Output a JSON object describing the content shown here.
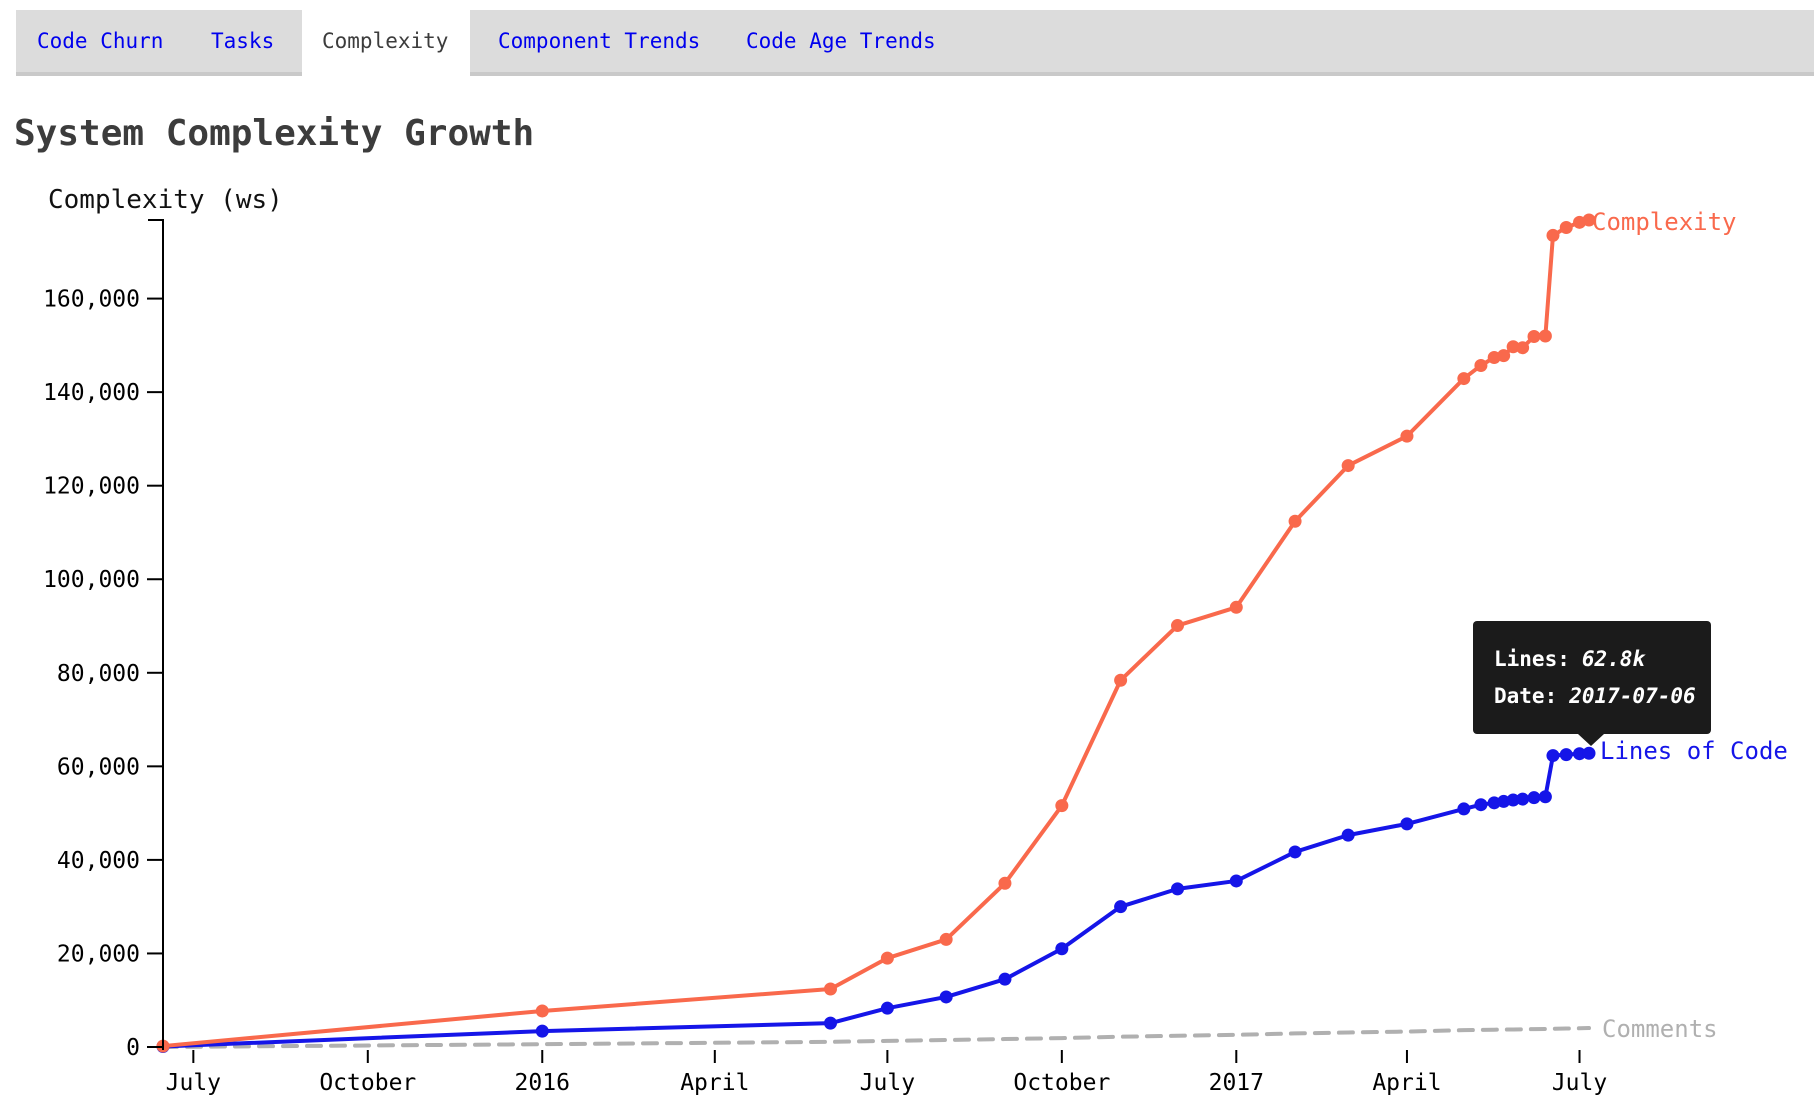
{
  "tab_bar": {
    "group1": {
      "tabs": [
        {
          "label": "Code Churn"
        },
        {
          "label": "Tasks"
        }
      ]
    },
    "active_tab": {
      "label": "Complexity"
    },
    "group2": {
      "tabs": [
        {
          "label": "Component Trends"
        },
        {
          "label": "Code Age Trends"
        }
      ]
    }
  },
  "chart_data": {
    "type": "line",
    "title": "System Complexity Growth",
    "y_axis_label": "Complexity (ws)",
    "x_dates": [
      "2015-06-15",
      "2016-01-01",
      "2016-06-01",
      "2016-07-01",
      "2016-08-01",
      "2016-09-01",
      "2016-10-01",
      "2016-11-01",
      "2016-12-01",
      "2017-01-01",
      "2017-02-01",
      "2017-03-01",
      "2017-04-01",
      "2017-05-01",
      "2017-05-10",
      "2017-05-17",
      "2017-05-22",
      "2017-05-27",
      "2017-06-01",
      "2017-06-07",
      "2017-06-13",
      "2017-06-17",
      "2017-06-24",
      "2017-07-01",
      "2017-07-06"
    ],
    "series": [
      {
        "name": "Complexity",
        "color": "#f9694c",
        "line_style": "solid",
        "markers": true,
        "values": [
          200,
          7700,
          12400,
          19000,
          23000,
          35000,
          51600,
          78400,
          90100,
          94000,
          112400,
          124300,
          130600,
          142900,
          145700,
          147400,
          147800,
          149700,
          149500,
          151900,
          152000,
          173500,
          175200,
          176300,
          176800
        ]
      },
      {
        "name": "Lines of Code",
        "color": "#1515e8",
        "line_style": "solid",
        "markers": true,
        "values": [
          100,
          3400,
          5100,
          8300,
          10700,
          14500,
          21000,
          30000,
          33800,
          35500,
          41700,
          45300,
          47700,
          50900,
          51800,
          52200,
          52500,
          52800,
          53000,
          53300,
          53500,
          62300,
          62500,
          62700,
          62800
        ]
      },
      {
        "name": "Comments",
        "color": "#b0b0b0",
        "line_style": "dashed",
        "markers": false,
        "values": [
          0,
          600,
          1100,
          1300,
          1500,
          1700,
          1900,
          2200,
          2400,
          2600,
          2900,
          3100,
          3300,
          3600,
          3650,
          3700,
          3720,
          3750,
          3780,
          3820,
          3850,
          3900,
          3950,
          4000,
          4050
        ]
      }
    ],
    "ylim": [
      0,
      176800
    ],
    "yticks": [
      {
        "value": 0,
        "label": "0"
      },
      {
        "value": 20000,
        "label": "20,000"
      },
      {
        "value": 40000,
        "label": "40,000"
      },
      {
        "value": 60000,
        "label": "60,000"
      },
      {
        "value": 80000,
        "label": "80,000"
      },
      {
        "value": 100000,
        "label": "100,000"
      },
      {
        "value": 120000,
        "label": "120,000"
      },
      {
        "value": 140000,
        "label": "140,000"
      },
      {
        "value": 160000,
        "label": "160,000"
      }
    ],
    "xticks": [
      {
        "date": "2015-07-01",
        "label": "July"
      },
      {
        "date": "2015-10-01",
        "label": "October"
      },
      {
        "date": "2016-01-01",
        "label": "2016"
      },
      {
        "date": "2016-04-01",
        "label": "April"
      },
      {
        "date": "2016-07-01",
        "label": "July"
      },
      {
        "date": "2016-10-01",
        "label": "October"
      },
      {
        "date": "2017-01-01",
        "label": "2017"
      },
      {
        "date": "2017-04-01",
        "label": "April"
      },
      {
        "date": "2017-07-01",
        "label": "July"
      }
    ],
    "grid": false,
    "legend_position": "line-end"
  },
  "tooltip": {
    "rows": [
      {
        "label": "Lines:",
        "value": "62.8k"
      },
      {
        "label": "Date:",
        "value": "2017-07-06"
      }
    ]
  },
  "colors": {
    "link_blue": "#0000ee",
    "active_tab_text": "#3c3c3c",
    "tab_background": "#dcdcdc",
    "tooltip_background": "#1b1b1b"
  }
}
